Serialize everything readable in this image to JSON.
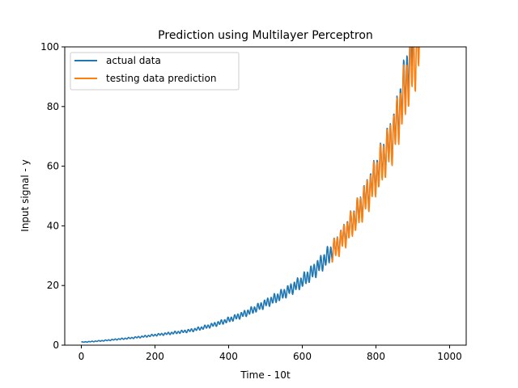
{
  "chart_data": {
    "type": "line",
    "title": "Prediction using Multilayer Perceptron",
    "xlabel": "Time - 10t",
    "ylabel": "Input signal - y",
    "xlim": [
      -45,
      1045
    ],
    "ylim": [
      0,
      100
    ],
    "xticks": [
      0,
      200,
      400,
      600,
      800,
      1000
    ],
    "xtick_labels": [
      "0",
      "200",
      "400",
      "600",
      "800",
      "1000"
    ],
    "yticks": [
      0,
      20,
      40,
      60,
      80,
      100
    ],
    "ytick_labels": [
      "0",
      "20",
      "40",
      "60",
      "80",
      "100"
    ],
    "grid": false,
    "legend_position": "top-left",
    "series": [
      {
        "name": "actual data",
        "color": "#1f77b4",
        "x_range": [
          0,
          900
        ],
        "trend_points": [
          [
            0,
            1.0
          ],
          [
            100,
            2.0
          ],
          [
            200,
            3.4
          ],
          [
            300,
            5.0
          ],
          [
            400,
            8.5
          ],
          [
            500,
            14.0
          ],
          [
            600,
            21.5
          ],
          [
            700,
            34.5
          ],
          [
            800,
            57.5
          ],
          [
            850,
            72.0
          ],
          [
            900,
            102.0
          ]
        ],
        "oscillation": {
          "period": 9,
          "amplitude_fraction": 0.09
        }
      },
      {
        "name": "testing data prediction",
        "color": "#ff7f0e",
        "x_range": [
          680,
          920
        ],
        "trend_points": [
          [
            680,
            31.0
          ],
          [
            700,
            34.0
          ],
          [
            750,
            44.0
          ],
          [
            800,
            56.5
          ],
          [
            850,
            71.0
          ],
          [
            880,
            86.0
          ],
          [
            900,
            95.0
          ],
          [
            920,
            102.0
          ]
        ],
        "oscillation": {
          "period": 9,
          "amplitude_fraction": 0.1
        }
      }
    ]
  }
}
